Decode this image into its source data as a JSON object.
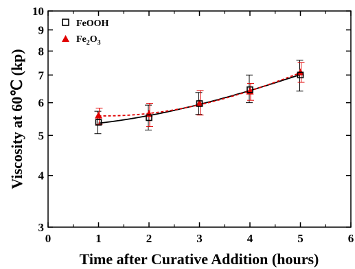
{
  "chart_data": {
    "type": "scatter",
    "xlabel": "Time after Curative Addition (hours)",
    "ylabel": "Viscosity at 60℃ (kp)",
    "xlim": [
      0,
      6
    ],
    "ylim": [
      3,
      10
    ],
    "yscale": "log",
    "xticks": [
      "0",
      "1",
      "2",
      "3",
      "4",
      "5",
      "6"
    ],
    "yticks": [
      {
        "value": 3,
        "label": "3"
      },
      {
        "value": 4,
        "label": "4"
      },
      {
        "value": 5,
        "label": "5"
      },
      {
        "value": 6,
        "label": "6"
      },
      {
        "value": 7,
        "label": "7"
      },
      {
        "value": 8,
        "label": "8"
      },
      {
        "value": 9,
        "label": "9"
      },
      {
        "value": 10,
        "label": "10"
      }
    ],
    "legend": {
      "placement": "top-left",
      "entries": [
        {
          "base": "FeOOH",
          "sub1": "",
          "mid": "",
          "sub2": ""
        },
        {
          "base": "Fe",
          "sub1": "2",
          "mid": "O",
          "sub2": "3"
        }
      ]
    },
    "series": [
      {
        "label": "FeOOH",
        "marker": "open-square",
        "color": "#000000",
        "fit_line": "solid",
        "x": [
          1,
          2,
          3,
          4,
          5
        ],
        "y": [
          5.38,
          5.52,
          5.97,
          6.45,
          7.0
        ],
        "err_low": [
          5.05,
          5.15,
          5.62,
          6.0,
          6.4
        ],
        "err_high": [
          5.72,
          5.92,
          6.35,
          7.0,
          7.6
        ]
      },
      {
        "label": "Fe2O3",
        "marker": "filled-triangle",
        "color": "#e00000",
        "fit_line": "dashed",
        "x": [
          1,
          2,
          3,
          4,
          5
        ],
        "y": [
          5.58,
          5.63,
          5.97,
          6.38,
          7.1
        ],
        "err_low": [
          5.32,
          5.25,
          5.6,
          6.08,
          6.72
        ],
        "err_high": [
          5.82,
          5.98,
          6.42,
          6.68,
          7.5
        ]
      }
    ]
  }
}
